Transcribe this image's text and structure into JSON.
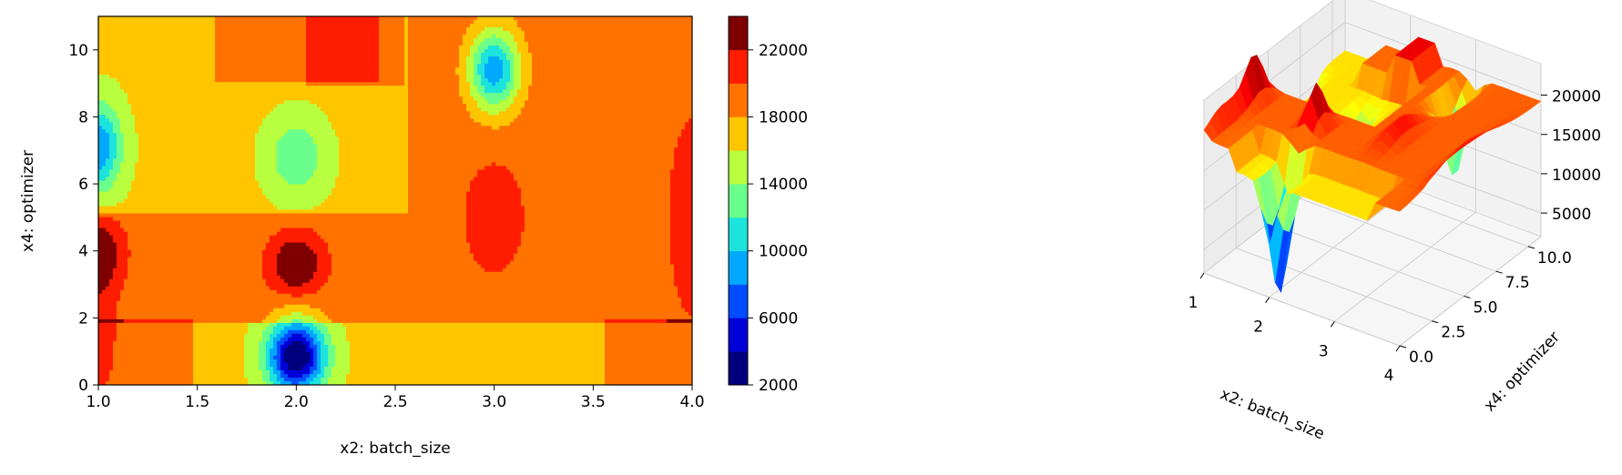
{
  "chart_data": [
    {
      "type": "contour",
      "xlabel": "x2: batch_size",
      "ylabel": "x4: optimizer",
      "xlim": [
        1.0,
        4.0
      ],
      "ylim": [
        0,
        11
      ],
      "x_ticks": [
        "1.0",
        "1.5",
        "2.0",
        "2.5",
        "3.0",
        "3.5",
        "4.0"
      ],
      "y_ticks": [
        "0",
        "2",
        "4",
        "6",
        "8",
        "10"
      ],
      "colorbar": {
        "ticks": [
          "2000",
          "6000",
          "10000",
          "14000",
          "18000",
          "22000"
        ],
        "levels": [
          2000,
          4000,
          6000,
          8000,
          10000,
          12000,
          14000,
          16000,
          18000,
          20000,
          22000,
          24000
        ],
        "colors": [
          "#00007f",
          "#0000d8",
          "#004cff",
          "#00a8ff",
          "#1ce3db",
          "#6aff8d",
          "#b8ff3f",
          "#ffc600",
          "#ff7200",
          "#ff1d00",
          "#7f0000"
        ]
      },
      "colormap": "jet"
    },
    {
      "type": "surface3d",
      "xlabel": "x2: batch_size",
      "ylabel": "x4: optimizer",
      "x_ticks": [
        "1",
        "2",
        "3",
        "4"
      ],
      "y_ticks": [
        "0.0",
        "2.5",
        "5.0",
        "7.5",
        "10.0"
      ],
      "z_ticks": [
        "5000",
        "10000",
        "15000",
        "20000"
      ],
      "zlim": [
        2000,
        24000
      ],
      "colormap": "jet"
    }
  ]
}
